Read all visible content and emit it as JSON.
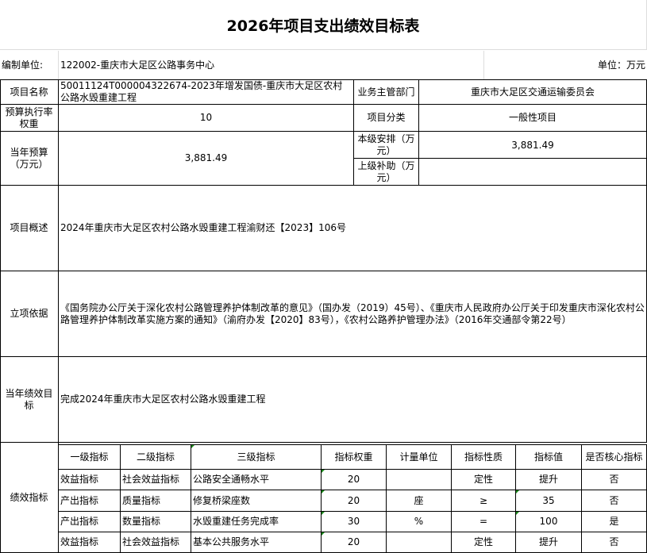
{
  "title": "2026年项目支出绩效目标表",
  "unit_row": {
    "label": "编制单位:",
    "value": "122002-重庆市大足区公路事务中心",
    "unit": "单位：万元"
  },
  "info": {
    "project_name_label": "项目名称",
    "project_name": "50011124T000004322674-2023年增发国债-重庆市大足区农村公路水毁重建工程",
    "dept_label": "业务主管部门",
    "dept": "重庆市大足区交通运输委员会",
    "weight_label": "预算执行率权重",
    "weight": "10",
    "category_label": "项目分类",
    "category": "一般性项目",
    "budget_label": "当年预算（万元）",
    "budget": "3,881.49",
    "local_label": "本级安排（万元）",
    "local": "3,881.49",
    "upper_label": "上级补助（万元）",
    "upper": "",
    "overview_label": "项目概述",
    "overview": "2024年重庆市大足区农村公路水毁重建工程渝财还【2023】106号",
    "basis_label": "立项依据",
    "basis": "《国务院办公厅关于深化农村公路管理养护体制改革的意见》（国办发（2019）45号）、《重庆市人民政府办公厅关于印发重庆市深化农村公路管理养护体制改革实施方案的通知》（渝府办发【2020】83号），《农村公路养护管理办法》（2016年交通部令第22号）",
    "goal_label": "当年绩效目标",
    "goal": "完成2024年重庆市大足区农村公路水毁重建工程"
  },
  "indicators": {
    "label": "绩效指标",
    "headers": [
      "一级指标",
      "二级指标",
      "三级指标",
      "指标权重",
      "计量单位",
      "指标性质",
      "指标值",
      "是否核心指标"
    ],
    "rows": [
      [
        "效益指标",
        "社会效益指标",
        "公路安全通畅水平",
        "20",
        "",
        "定性",
        "提升",
        "否"
      ],
      [
        "产出指标",
        "质量指标",
        "修复桥梁座数",
        "20",
        "座",
        "≥",
        "35",
        "否"
      ],
      [
        "产出指标",
        "数量指标",
        "水毁重建任务完成率",
        "30",
        "%",
        "=",
        "100",
        "是"
      ],
      [
        "效益指标",
        "社会效益指标",
        "基本公共服务水平",
        "20",
        "",
        "定性",
        "提升",
        "否"
      ]
    ]
  }
}
